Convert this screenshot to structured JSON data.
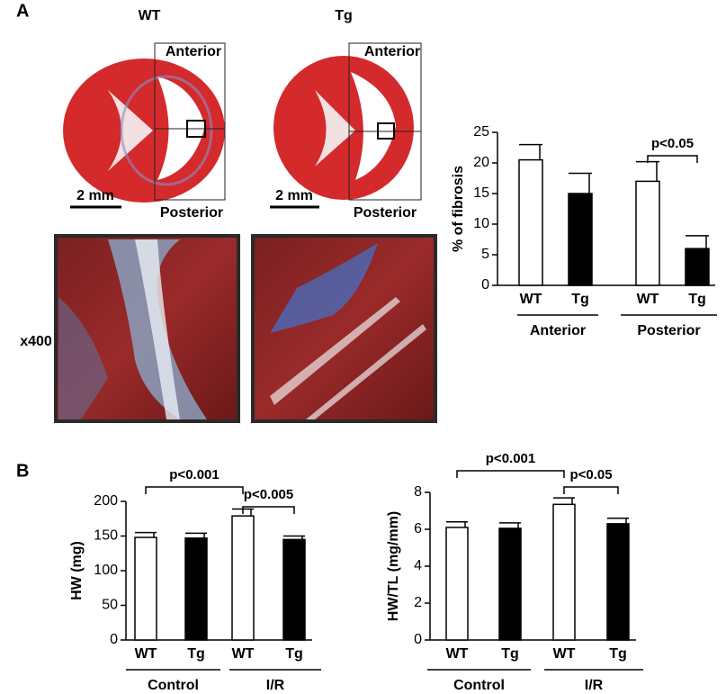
{
  "figure": {
    "panel_a": "A",
    "panel_b": "B",
    "wt": "WT",
    "tg": "Tg",
    "anterior_wt": "Anterior",
    "anterior_tg": "Anterior",
    "posterior_wt": "Posterior",
    "posterior_tg": "Posterior",
    "scale_wt": "2 mm",
    "scale_tg": "2 mm",
    "magnification": "x400"
  },
  "chart_data": [
    {
      "type": "bar",
      "ylabel": "% of fibrosis",
      "categories": [
        "WT",
        "Tg",
        "WT",
        "Tg"
      ],
      "groups": [
        "Anterior",
        "Posterior"
      ],
      "values": [
        20.5,
        15,
        17,
        6
      ],
      "errors": [
        2.5,
        3.3,
        3.2,
        2.1
      ],
      "colors": [
        "#ffffff",
        "#000000",
        "#ffffff",
        "#000000"
      ],
      "ylim": [
        0,
        25
      ],
      "yticks": [
        0,
        5,
        10,
        15,
        20,
        25
      ],
      "annotations": [
        {
          "text": "p<0.05",
          "between": [
            2,
            3
          ]
        }
      ]
    },
    {
      "type": "bar",
      "ylabel": "HW (mg)",
      "categories": [
        "WT",
        "Tg",
        "WT",
        "Tg"
      ],
      "groups": [
        "Control",
        "I/R"
      ],
      "values": [
        148,
        147,
        179,
        145
      ],
      "errors": [
        7,
        7,
        10,
        5
      ],
      "colors": [
        "#ffffff",
        "#000000",
        "#ffffff",
        "#000000"
      ],
      "ylim": [
        0,
        200
      ],
      "yticks": [
        0,
        50,
        100,
        150,
        200
      ],
      "annotations": [
        {
          "text": "p<0.001",
          "between": [
            0,
            2
          ]
        },
        {
          "text": "p<0.005",
          "between": [
            2,
            3
          ]
        }
      ]
    },
    {
      "type": "bar",
      "ylabel": "HW/TL (mg/mm)",
      "categories": [
        "WT",
        "Tg",
        "WT",
        "Tg"
      ],
      "groups": [
        "Control",
        "I/R"
      ],
      "values": [
        6.1,
        6.05,
        7.35,
        6.3
      ],
      "errors": [
        0.3,
        0.3,
        0.35,
        0.3
      ],
      "colors": [
        "#ffffff",
        "#000000",
        "#ffffff",
        "#000000"
      ],
      "ylim": [
        0,
        8
      ],
      "yticks": [
        0,
        2,
        4,
        6,
        8
      ],
      "annotations": [
        {
          "text": "p<0.001",
          "between": [
            0,
            2
          ]
        },
        {
          "text": "p<0.05",
          "between": [
            2,
            3
          ]
        }
      ]
    }
  ]
}
